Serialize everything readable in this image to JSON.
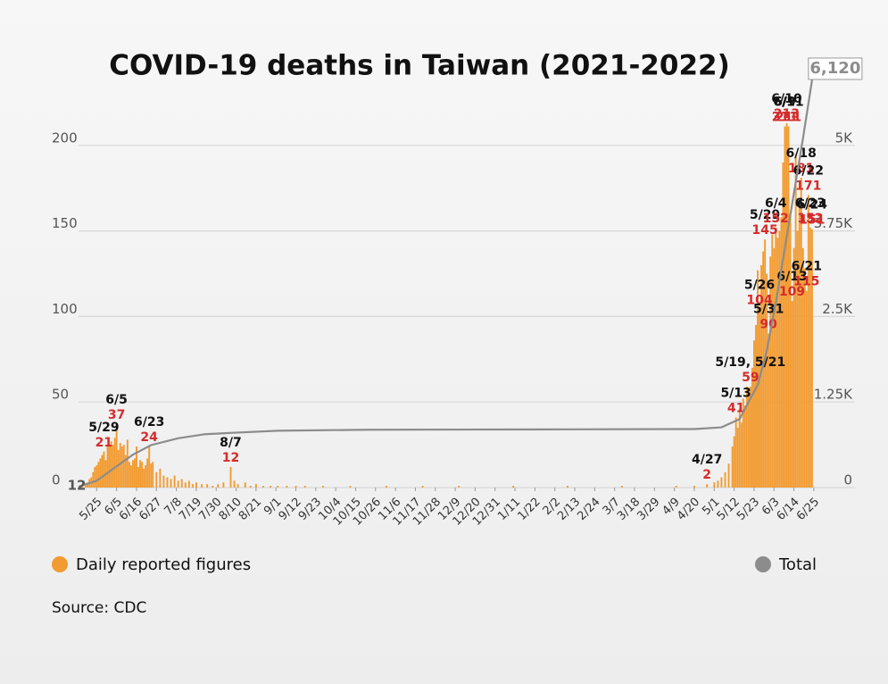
{
  "chart_data": {
    "type": "bar",
    "title": "COVID-19 deaths in Taiwan (2021-2022)",
    "source": "Source: CDC",
    "xlim": [
      -10,
      400
    ],
    "xticks": [
      {
        "value": 0,
        "label": "5/25"
      },
      {
        "value": 11,
        "label": "6/5"
      },
      {
        "value": 22,
        "label": "6/16"
      },
      {
        "value": 33,
        "label": "6/27"
      },
      {
        "value": 44,
        "label": "7/8"
      },
      {
        "value": 55,
        "label": "7/19"
      },
      {
        "value": 66,
        "label": "7/30"
      },
      {
        "value": 77,
        "label": "8/10"
      },
      {
        "value": 88,
        "label": "8/21"
      },
      {
        "value": 99,
        "label": "9/1"
      },
      {
        "value": 110,
        "label": "9/12"
      },
      {
        "value": 121,
        "label": "9/23"
      },
      {
        "value": 132,
        "label": "10/4"
      },
      {
        "value": 143,
        "label": "10/15"
      },
      {
        "value": 154,
        "label": "10/26"
      },
      {
        "value": 165,
        "label": "11/6"
      },
      {
        "value": 176,
        "label": "11/17"
      },
      {
        "value": 187,
        "label": "11/28"
      },
      {
        "value": 198,
        "label": "12/9"
      },
      {
        "value": 209,
        "label": "12/20"
      },
      {
        "value": 220,
        "label": "12/31"
      },
      {
        "value": 231,
        "label": "1/11"
      },
      {
        "value": 242,
        "label": "1/22"
      },
      {
        "value": 253,
        "label": "2/2"
      },
      {
        "value": 264,
        "label": "2/13"
      },
      {
        "value": 275,
        "label": "2/24"
      },
      {
        "value": 286,
        "label": "3/7"
      },
      {
        "value": 297,
        "label": "3/18"
      },
      {
        "value": 308,
        "label": "3/29"
      },
      {
        "value": 319,
        "label": "4/9"
      },
      {
        "value": 330,
        "label": "4/20"
      },
      {
        "value": 341,
        "label": "5/1"
      },
      {
        "value": 352,
        "label": "5/12"
      },
      {
        "value": 363,
        "label": "5/23"
      },
      {
        "value": 374,
        "label": "6/3"
      },
      {
        "value": 385,
        "label": "6/14"
      },
      {
        "value": 396,
        "label": "6/25"
      }
    ],
    "ylim": [
      0,
      250
    ],
    "yticks": [
      0,
      50,
      100,
      150,
      200
    ],
    "y2lim": [
      0,
      6250
    ],
    "y2ticks": [
      {
        "value": 0,
        "label": "0"
      },
      {
        "value": 1250,
        "label": "1.25K"
      },
      {
        "value": 2500,
        "label": "2.5K"
      },
      {
        "value": 3750,
        "label": "3.75K"
      },
      {
        "value": 5000,
        "label": "5K"
      }
    ],
    "grid": true,
    "series": [
      {
        "name": "Daily reported figures",
        "color": "#f29b30",
        "x": [
          -8,
          -6,
          -5,
          -4,
          -3,
          -2,
          -1,
          0,
          1,
          2,
          3,
          4,
          5,
          6,
          7,
          8,
          9,
          10,
          11,
          12,
          13,
          14,
          15,
          16,
          17,
          18,
          19,
          20,
          21,
          22,
          23,
          24,
          25,
          26,
          27,
          28,
          29,
          30,
          31,
          33,
          35,
          37,
          39,
          41,
          43,
          45,
          47,
          49,
          51,
          53,
          55,
          58,
          61,
          64,
          67,
          70,
          74,
          76,
          78,
          82,
          85,
          88,
          92,
          96,
          100,
          105,
          110,
          115,
          125,
          140,
          160,
          180,
          200,
          230,
          260,
          290,
          320,
          330,
          337,
          341,
          343,
          345,
          347,
          349,
          351,
          352,
          353,
          354,
          355,
          356,
          357,
          358,
          359,
          360,
          361,
          362,
          363,
          364,
          365,
          366,
          367,
          368,
          369,
          370,
          371,
          372,
          373,
          374,
          375,
          376,
          377,
          378,
          379,
          380,
          381,
          382,
          383,
          384,
          385,
          386,
          387,
          388,
          389,
          390,
          391,
          392,
          393,
          394,
          395
        ],
        "values": [
          1,
          2,
          3,
          5,
          6,
          9,
          12,
          13,
          15,
          17,
          19,
          21,
          16,
          25,
          24,
          27,
          25,
          29,
          37,
          22,
          26,
          24,
          25,
          19,
          28,
          15,
          13,
          16,
          17,
          24,
          12,
          16,
          15,
          11,
          13,
          17,
          24,
          14,
          15,
          9,
          11,
          7,
          6,
          5,
          7,
          4,
          5,
          3,
          4,
          2,
          3,
          2,
          2,
          1,
          2,
          3,
          12,
          4,
          2,
          3,
          1,
          2,
          1,
          1,
          1,
          1,
          1,
          1,
          1,
          1,
          1,
          1,
          1,
          1,
          1,
          1,
          1,
          1,
          2,
          3,
          4,
          6,
          9,
          14,
          24,
          30,
          41,
          35,
          46,
          38,
          52,
          48,
          59,
          55,
          59,
          70,
          86,
          95,
          127,
          104,
          130,
          138,
          145,
          125,
          90,
          135,
          148,
          140,
          152,
          146,
          150,
          158,
          190,
          211,
          213,
          211,
          160,
          109,
          140,
          195,
          150,
          165,
          181,
          140,
          128,
          115,
          171,
          152,
          151
        ],
        "labels": [
          null,
          null,
          null,
          null,
          null,
          null,
          null,
          null,
          null,
          null,
          null,
          "5/29",
          null,
          null,
          null,
          null,
          null,
          null,
          "6/5",
          null,
          null,
          null,
          null,
          null,
          null,
          null,
          null,
          null,
          null,
          null,
          null,
          null,
          null,
          null,
          null,
          null,
          "6/23",
          null,
          null,
          null,
          null,
          null,
          null,
          null,
          null,
          null,
          null,
          null,
          null,
          null,
          null,
          null,
          null,
          null,
          null,
          null,
          "8/7",
          null,
          null,
          null,
          null,
          null,
          null,
          null,
          null,
          null,
          null,
          null,
          null,
          null,
          null,
          null,
          null,
          null,
          null,
          null,
          null,
          null,
          "4/27",
          null,
          null,
          null,
          null,
          null,
          null,
          null,
          "5/13",
          null,
          null,
          null,
          null,
          null,
          null,
          null,
          "5/19, 5/21",
          null,
          null,
          null,
          null,
          "5/26",
          null,
          null,
          "5/29",
          null,
          "5/31",
          null,
          null,
          null,
          "6/4",
          null,
          null,
          null,
          null,
          "6/9",
          "6/10",
          "6/11",
          null,
          "6/13",
          null,
          null,
          null,
          null,
          "6/18",
          null,
          null,
          "6/21",
          "6/22",
          "6/23",
          "6/24"
        ]
      },
      {
        "name": "Total",
        "color": "#8c8c8c",
        "axis": "y2",
        "x": [
          -10,
          0,
          10,
          20,
          30,
          45,
          60,
          75,
          100,
          150,
          250,
          330,
          345,
          355,
          365,
          370,
          375,
          380,
          385,
          390,
          396
        ],
        "values": [
          12,
          100,
          290,
          480,
          620,
          720,
          780,
          800,
          830,
          845,
          850,
          855,
          880,
          1000,
          1500,
          2000,
          2700,
          3500,
          4300,
          5100,
          6120
        ],
        "value_labels": [
          "12",
          null,
          null,
          null,
          null,
          null,
          null,
          null,
          null,
          null,
          null,
          null,
          null,
          null,
          null,
          null,
          null,
          null,
          null,
          null,
          "6,120"
        ]
      }
    ]
  }
}
